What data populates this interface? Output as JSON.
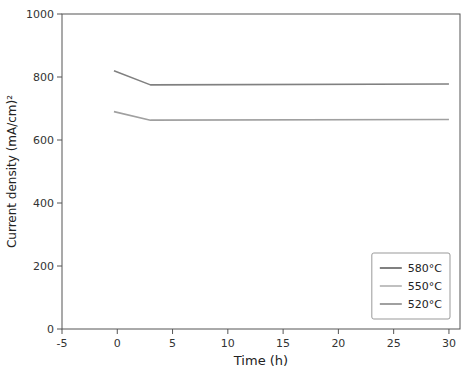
{
  "chart_data": {
    "type": "line",
    "xlabel": "Time (h)",
    "ylabel": "Current density (mA/cm)²",
    "x": [
      -0.3,
      3.0,
      30.0
    ],
    "series": [
      {
        "name": "580°C",
        "color": "#808080",
        "values": [
          820,
          775,
          778
        ]
      },
      {
        "name": "550°C",
        "color": "#c0c0c0",
        "values": [
          null,
          null,
          null
        ]
      },
      {
        "name": "520°C",
        "color": "#a0a0a0",
        "values": [
          690,
          663,
          665
        ]
      }
    ],
    "xlim": [
      -5,
      31
    ],
    "ylim": [
      0,
      1000
    ],
    "xticks": [
      -5,
      0,
      5,
      10,
      15,
      20,
      25,
      30
    ],
    "yticks": [
      0,
      200,
      400,
      600,
      800,
      1000
    ],
    "grid": false,
    "legend": "lower right"
  }
}
